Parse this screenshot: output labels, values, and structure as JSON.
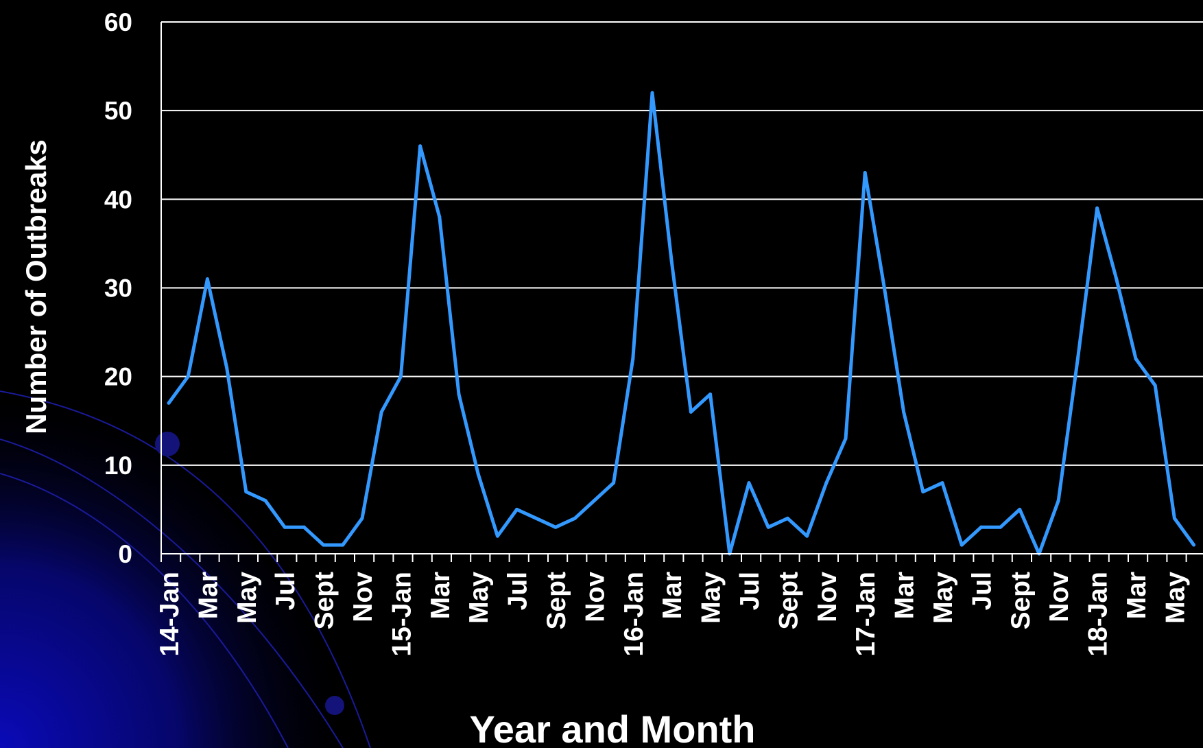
{
  "chart_data": {
    "type": "line",
    "ylabel": "Number of Outbreaks",
    "xlabel": "Year and Month",
    "ylim": [
      0,
      60
    ],
    "yticks": [
      "0",
      "10",
      "20",
      "30",
      "40",
      "50",
      "60"
    ],
    "grid": true,
    "colors": {
      "line": "#3399ff",
      "background": "#000000",
      "grid": "#ffffff"
    },
    "x_tick_labels": [
      "14-Jan",
      "Mar",
      "May",
      "Jul",
      "Sept",
      "Nov",
      "15-Jan",
      "Mar",
      "May",
      "Jul",
      "Sept",
      "Nov",
      "16-Jan",
      "Mar",
      "May",
      "Jul",
      "Sept",
      "Nov",
      "17-Jan",
      "Mar",
      "May",
      "Jul",
      "Sept",
      "Nov",
      "18-Jan",
      "Mar",
      "May"
    ],
    "months": [
      "2014-01",
      "2014-02",
      "2014-03",
      "2014-04",
      "2014-05",
      "2014-06",
      "2014-07",
      "2014-08",
      "2014-09",
      "2014-10",
      "2014-11",
      "2014-12",
      "2015-01",
      "2015-02",
      "2015-03",
      "2015-04",
      "2015-05",
      "2015-06",
      "2015-07",
      "2015-08",
      "2015-09",
      "2015-10",
      "2015-11",
      "2015-12",
      "2016-01",
      "2016-02",
      "2016-03",
      "2016-04",
      "2016-05",
      "2016-06",
      "2016-07",
      "2016-08",
      "2016-09",
      "2016-10",
      "2016-11",
      "2016-12",
      "2017-01",
      "2017-02",
      "2017-03",
      "2017-04",
      "2017-05",
      "2017-06",
      "2017-07",
      "2017-08",
      "2017-09",
      "2017-10",
      "2017-11",
      "2017-12",
      "2018-01",
      "2018-02",
      "2018-03",
      "2018-04",
      "2018-05",
      "2018-06"
    ],
    "series": [
      {
        "values": [
          17,
          20,
          31,
          21,
          7,
          6,
          3,
          3,
          1,
          1,
          4,
          16,
          20,
          46,
          38,
          18,
          9,
          2,
          5,
          4,
          3,
          4,
          6,
          8,
          22,
          52,
          33,
          16,
          18,
          0,
          8,
          3,
          4,
          2,
          8,
          13,
          43,
          30,
          16,
          7,
          8,
          1,
          3,
          3,
          5,
          0,
          6,
          22,
          39,
          31,
          22,
          19,
          4,
          1
        ]
      }
    ]
  }
}
